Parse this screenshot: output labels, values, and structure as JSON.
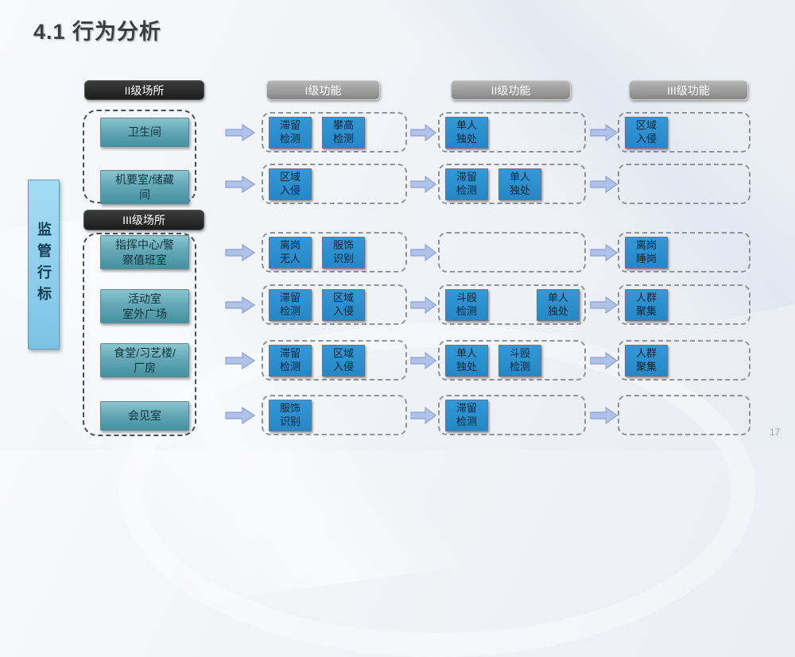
{
  "slide": {
    "title": "4.1 行为分析",
    "side_label": "监管行标",
    "page_number": "17"
  },
  "headers": {
    "level2_place": "II级场所",
    "level3_place": "III级场所",
    "func_level1": "I级功能",
    "func_level2": "II级功能",
    "func_level3": "III级功能"
  },
  "colors": {
    "function_box_blue": "#2b90d0",
    "place_box_teal": "#57a0af",
    "header_black": "#2b2b2b",
    "header_gray": "#9a9a9a",
    "arrow_fill": "#b0c2ea",
    "side_label_blue": "#8fd0ec"
  },
  "rows": [
    {
      "place": "卫生间",
      "f1": [
        {
          "label": "滞留\n检测"
        },
        {
          "label": "攀高\n检测"
        }
      ],
      "f2": [
        {
          "label": "单人\n独处"
        }
      ],
      "f3": [
        {
          "label": "区域\n入侵"
        }
      ]
    },
    {
      "place": "机要室/储藏\n间",
      "f1": [
        {
          "label": "区域\n入侵"
        }
      ],
      "f2": [
        {
          "label": "滞留\n检测"
        },
        {
          "label": "单人\n独处"
        }
      ],
      "f3": []
    },
    {
      "place": "指挥中心/警\n察值班室",
      "f1": [
        {
          "label": "离岗\n无人"
        },
        {
          "label": "服饰\n识别"
        }
      ],
      "f2": [],
      "f3": [
        {
          "label": "离岗\n睡岗"
        }
      ]
    },
    {
      "place": "活动室\n室外广场",
      "f1": [
        {
          "label": "滞留\n检测"
        },
        {
          "label": "区域\n入侵"
        }
      ],
      "f2": [
        {
          "label": "斗殴\n检测"
        },
        {
          "label": "单人\n独处",
          "push_right": true
        }
      ],
      "f3": [
        {
          "label": "人群\n聚集"
        }
      ]
    },
    {
      "place": "食堂/习艺楼/\n厂房",
      "f1": [
        {
          "label": "滞留\n检测"
        },
        {
          "label": "区域\n入侵"
        }
      ],
      "f2": [
        {
          "label": "单人\n独处"
        },
        {
          "label": "斗殴\n检测"
        }
      ],
      "f3": [
        {
          "label": "人群\n聚集"
        }
      ]
    },
    {
      "place": "会见室",
      "f1": [
        {
          "label": "服饰\n识别"
        }
      ],
      "f2": [
        {
          "label": "滞留\n检测"
        }
      ],
      "f3": []
    }
  ]
}
